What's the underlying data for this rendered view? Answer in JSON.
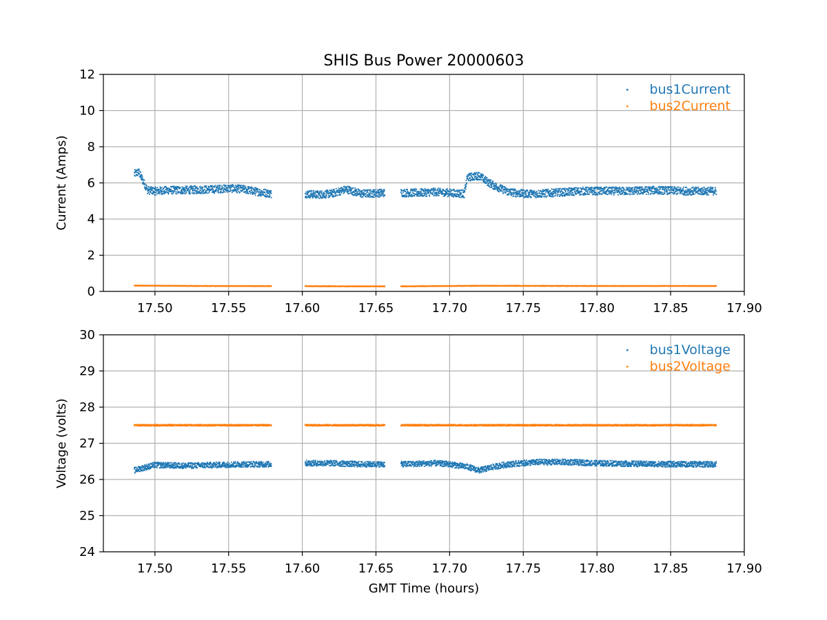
{
  "figure": {
    "title": "SHIS Bus Power 20000603",
    "xlabel": "GMT Time (hours)"
  },
  "chart_data": [
    {
      "type": "scatter",
      "title": "SHIS Bus Power 20000603",
      "xlabel": "",
      "ylabel": "Current (Amps)",
      "xlim": [
        17.465,
        17.9
      ],
      "ylim": [
        0,
        12
      ],
      "xticks": [
        "17.50",
        "17.55",
        "17.60",
        "17.65",
        "17.70",
        "17.75",
        "17.80",
        "17.85",
        "17.90"
      ],
      "xtick_values": [
        17.5,
        17.55,
        17.6,
        17.65,
        17.7,
        17.75,
        17.8,
        17.85,
        17.9
      ],
      "yticks": [
        "0",
        "2",
        "4",
        "6",
        "8",
        "10",
        "12"
      ],
      "ytick_values": [
        0,
        2,
        4,
        6,
        8,
        10,
        12
      ],
      "grid": true,
      "legend_position": "top-right",
      "segments": [
        [
          17.486,
          17.579
        ],
        [
          17.602,
          17.656
        ],
        [
          17.667,
          17.881
        ]
      ],
      "series": [
        {
          "name": "bus1Current",
          "color": "#1f77b4",
          "points": [
            [
              17.486,
              6.5
            ],
            [
              17.489,
              6.6
            ],
            [
              17.492,
              6.1
            ],
            [
              17.495,
              5.6
            ],
            [
              17.5,
              5.55
            ],
            [
              17.51,
              5.6
            ],
            [
              17.52,
              5.6
            ],
            [
              17.53,
              5.62
            ],
            [
              17.54,
              5.65
            ],
            [
              17.55,
              5.7
            ],
            [
              17.56,
              5.65
            ],
            [
              17.57,
              5.5
            ],
            [
              17.579,
              5.4
            ],
            [
              17.602,
              5.4
            ],
            [
              17.61,
              5.35
            ],
            [
              17.62,
              5.4
            ],
            [
              17.63,
              5.65
            ],
            [
              17.64,
              5.4
            ],
            [
              17.656,
              5.45
            ],
            [
              17.667,
              5.45
            ],
            [
              17.68,
              5.45
            ],
            [
              17.69,
              5.5
            ],
            [
              17.7,
              5.45
            ],
            [
              17.71,
              5.4
            ],
            [
              17.712,
              6.3
            ],
            [
              17.72,
              6.4
            ],
            [
              17.725,
              6.1
            ],
            [
              17.73,
              5.85
            ],
            [
              17.74,
              5.5
            ],
            [
              17.75,
              5.4
            ],
            [
              17.76,
              5.4
            ],
            [
              17.77,
              5.45
            ],
            [
              17.78,
              5.5
            ],
            [
              17.79,
              5.55
            ],
            [
              17.8,
              5.55
            ],
            [
              17.82,
              5.55
            ],
            [
              17.84,
              5.6
            ],
            [
              17.86,
              5.55
            ],
            [
              17.881,
              5.55
            ]
          ]
        },
        {
          "name": "bus2Current",
          "color": "#ff7f0e",
          "points": [
            [
              17.486,
              0.32
            ],
            [
              17.53,
              0.3
            ],
            [
              17.579,
              0.29
            ],
            [
              17.602,
              0.29
            ],
            [
              17.63,
              0.28
            ],
            [
              17.656,
              0.28
            ],
            [
              17.667,
              0.28
            ],
            [
              17.72,
              0.31
            ],
            [
              17.8,
              0.3
            ],
            [
              17.881,
              0.3
            ]
          ]
        }
      ]
    },
    {
      "type": "scatter",
      "title": "",
      "xlabel": "GMT Time (hours)",
      "ylabel": "Voltage (volts)",
      "xlim": [
        17.465,
        17.9
      ],
      "ylim": [
        24,
        30
      ],
      "xticks": [
        "17.50",
        "17.55",
        "17.60",
        "17.65",
        "17.70",
        "17.75",
        "17.80",
        "17.85",
        "17.90"
      ],
      "xtick_values": [
        17.5,
        17.55,
        17.6,
        17.65,
        17.7,
        17.75,
        17.8,
        17.85,
        17.9
      ],
      "yticks": [
        "24",
        "25",
        "26",
        "27",
        "28",
        "29",
        "30"
      ],
      "ytick_values": [
        24,
        25,
        26,
        27,
        28,
        29,
        30
      ],
      "grid": true,
      "legend_position": "top-right",
      "segments": [
        [
          17.486,
          17.579
        ],
        [
          17.602,
          17.656
        ],
        [
          17.667,
          17.881
        ]
      ],
      "series": [
        {
          "name": "bus1Voltage",
          "color": "#1f77b4",
          "points": [
            [
              17.486,
              26.25
            ],
            [
              17.49,
              26.3
            ],
            [
              17.5,
              26.4
            ],
            [
              17.52,
              26.38
            ],
            [
              17.54,
              26.4
            ],
            [
              17.56,
              26.42
            ],
            [
              17.579,
              26.42
            ],
            [
              17.602,
              26.45
            ],
            [
              17.62,
              26.45
            ],
            [
              17.64,
              26.42
            ],
            [
              17.656,
              26.42
            ],
            [
              17.667,
              26.42
            ],
            [
              17.69,
              26.45
            ],
            [
              17.7,
              26.42
            ],
            [
              17.712,
              26.35
            ],
            [
              17.72,
              26.25
            ],
            [
              17.73,
              26.35
            ],
            [
              17.74,
              26.42
            ],
            [
              17.76,
              26.48
            ],
            [
              17.78,
              26.48
            ],
            [
              17.8,
              26.45
            ],
            [
              17.83,
              26.43
            ],
            [
              17.86,
              26.42
            ],
            [
              17.881,
              26.42
            ]
          ]
        },
        {
          "name": "bus2Voltage",
          "color": "#ff7f0e",
          "points": [
            [
              17.486,
              27.5
            ],
            [
              17.53,
              27.5
            ],
            [
              17.579,
              27.5
            ],
            [
              17.602,
              27.5
            ],
            [
              17.656,
              27.5
            ],
            [
              17.667,
              27.5
            ],
            [
              17.75,
              27.5
            ],
            [
              17.881,
              27.5
            ]
          ]
        }
      ]
    }
  ]
}
